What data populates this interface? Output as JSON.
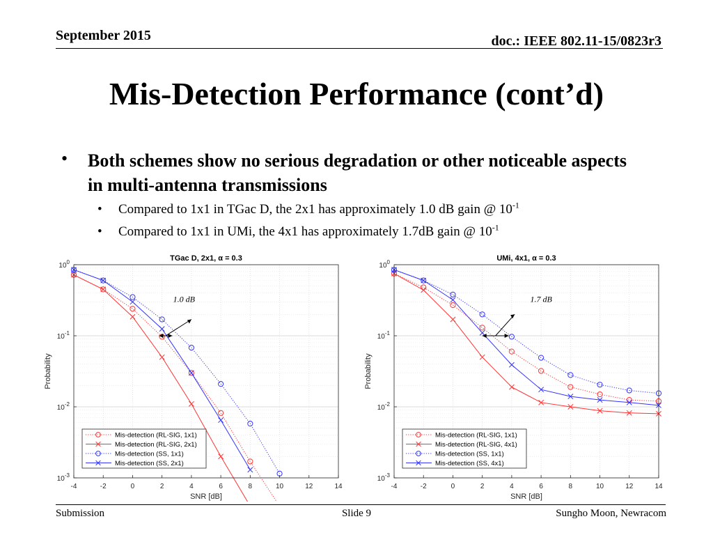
{
  "header": {
    "date": "September 2015",
    "doc": "doc.: IEEE 802.11-15/0823r3"
  },
  "slide_title": "Mis-Detection Performance (cont’d)",
  "bullets": {
    "main": "Both schemes show no serious degradation or other noticeable aspects in multi-antenna transmissions",
    "sub1": {
      "text": "Compared to 1x1 in TGac D, the 2x1 has approximately 1.0 dB gain @ 10",
      "exp": "-1"
    },
    "sub2": {
      "text": "Compared to 1x1 in UMi, the 4x1 has approximately 1.7dB gain @ 10",
      "exp": "-1"
    },
    "marker": "•"
  },
  "footer": {
    "left": "Submission",
    "center": "Slide 9",
    "right": "Sungho Moon, Newracom"
  },
  "colors": {
    "red": "#ff3333",
    "blue": "#3333ff"
  },
  "chart_data": [
    {
      "type": "line",
      "title": "TGac D, 2x1, α = 0.3",
      "xlabel": "SNR [dB]",
      "ylabel": "Probability",
      "log_y": true,
      "xlim": [
        -4,
        14
      ],
      "ylim": [
        0.001,
        1
      ],
      "x_ticks": [
        "-4",
        "-2",
        "0",
        "2",
        "4",
        "6",
        "8",
        "10",
        "12",
        "14"
      ],
      "y_ticks": [
        "10",
        "10",
        "10",
        "10"
      ],
      "y_tick_exponents": [
        "0",
        "-1",
        "-2",
        "-3"
      ],
      "grid": true,
      "legend_position": "bottom-left",
      "annotation": "1.0 dB",
      "series": [
        {
          "name": "Mis-detection (RL-SIG, 1x1)",
          "color": "red",
          "style": "dotted",
          "marker": "circle",
          "x": [
            -4,
            -2,
            0,
            2,
            4,
            6,
            8,
            10
          ],
          "y": [
            0.72,
            0.45,
            0.24,
            0.097,
            0.03,
            0.0082,
            0.0017,
            0.0004
          ]
        },
        {
          "name": "Mis-detection (RL-SIG, 2x1)",
          "color": "red",
          "style": "solid",
          "marker": "x",
          "x": [
            -4,
            -2,
            0,
            2,
            4,
            6,
            8
          ],
          "y": [
            0.72,
            0.45,
            0.185,
            0.05,
            0.011,
            0.002,
            0.0004
          ]
        },
        {
          "name": "Mis-detection (SS, 1x1)",
          "color": "blue",
          "style": "dotted",
          "marker": "circle",
          "x": [
            -4,
            -2,
            0,
            2,
            4,
            6,
            8,
            10
          ],
          "y": [
            0.85,
            0.6,
            0.35,
            0.17,
            0.068,
            0.021,
            0.0058,
            0.00115
          ]
        },
        {
          "name": "Mis-detection (SS, 2x1)",
          "color": "blue",
          "style": "solid",
          "marker": "x",
          "x": [
            -4,
            -2,
            0,
            2,
            4,
            6,
            8
          ],
          "y": [
            0.85,
            0.6,
            0.3,
            0.125,
            0.03,
            0.0065,
            0.0013
          ]
        }
      ]
    },
    {
      "type": "line",
      "title": "UMi, 4x1, α = 0.3",
      "xlabel": "SNR [dB]",
      "ylabel": "Probability",
      "log_y": true,
      "xlim": [
        -4,
        14
      ],
      "ylim": [
        0.001,
        1
      ],
      "x_ticks": [
        "-4",
        "-2",
        "0",
        "2",
        "4",
        "6",
        "8",
        "10",
        "12",
        "14"
      ],
      "y_ticks": [
        "10",
        "10",
        "10",
        "10"
      ],
      "y_tick_exponents": [
        "0",
        "-1",
        "-2",
        "-3"
      ],
      "grid": true,
      "legend_position": "bottom-left",
      "annotation": "1.7 dB",
      "series": [
        {
          "name": "Mis-detection (RL-SIG, 1x1)",
          "color": "red",
          "style": "dotted",
          "marker": "circle",
          "x": [
            -4,
            -2,
            0,
            2,
            4,
            6,
            8,
            10,
            12,
            14
          ],
          "y": [
            0.75,
            0.48,
            0.27,
            0.13,
            0.06,
            0.032,
            0.019,
            0.015,
            0.0125,
            0.012
          ]
        },
        {
          "name": "Mis-detection (RL-SIG, 4x1)",
          "color": "red",
          "style": "solid",
          "marker": "x",
          "x": [
            -4,
            -2,
            0,
            2,
            4,
            6,
            8,
            10,
            12,
            14
          ],
          "y": [
            0.75,
            0.44,
            0.17,
            0.05,
            0.019,
            0.0115,
            0.01,
            0.0088,
            0.0082,
            0.008
          ]
        },
        {
          "name": "Mis-detection (SS, 1x1)",
          "color": "blue",
          "style": "dotted",
          "marker": "circle",
          "x": [
            -4,
            -2,
            0,
            2,
            4,
            6,
            8,
            10,
            12,
            14
          ],
          "y": [
            0.85,
            0.6,
            0.38,
            0.2,
            0.097,
            0.049,
            0.028,
            0.0205,
            0.017,
            0.0155
          ]
        },
        {
          "name": "Mis-detection (SS, 4x1)",
          "color": "blue",
          "style": "solid",
          "marker": "x",
          "x": [
            -4,
            -2,
            0,
            2,
            4,
            6,
            8,
            10,
            12,
            14
          ],
          "y": [
            0.85,
            0.6,
            0.32,
            0.11,
            0.039,
            0.0175,
            0.014,
            0.0125,
            0.0115,
            0.0105
          ]
        }
      ]
    }
  ]
}
